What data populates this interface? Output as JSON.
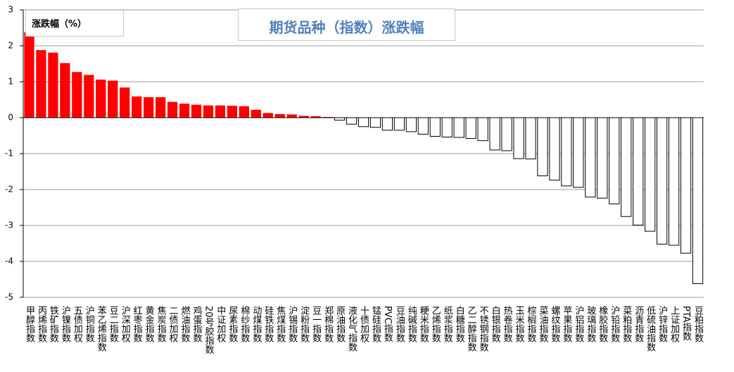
{
  "chart_data": {
    "type": "bar",
    "title": "期货品种（指数）涨跌幅",
    "legend_label": "涨跌幅（%）",
    "categories": [
      "甲醇指数",
      "丙烯指数",
      "铁矿指数",
      "沪镍指数",
      "五债加权",
      "沪铜指数",
      "苯乙烯指数",
      "豆二指数",
      "沪深加权",
      "红枣指数",
      "黄金指数",
      "焦炭指数",
      "二债加权",
      "燃油指数",
      "鸡蛋指数",
      "20号胶指数",
      "中证加权",
      "尿素指数",
      "棉纱指数",
      "动煤指数",
      "硅铁指数",
      "焦煤指数",
      "沪锡指数",
      "淀粉指数",
      "豆一指数",
      "郑棉指数",
      "原油指数",
      "液化气指数",
      "十债加权",
      "锰硅指数",
      "PVC指数",
      "豆油指数",
      "纯碱指数",
      "粳米指数",
      "乙烯指数",
      "纸浆指数",
      "白糖指数",
      "乙二醇指数",
      "不锈钢指数",
      "白银指数",
      "热卷指数",
      "玉米指数",
      "棕榈指数",
      "菜油指数",
      "螺纹指数",
      "苹果指数",
      "沪铝指数",
      "玻璃指数",
      "橡胶指数",
      "沪铅指数",
      "菜粕指数",
      "沥青指数",
      "低硫油指数",
      "沪锌指数",
      "上证加权",
      "PTA指数",
      "豆粕指数"
    ],
    "values": [
      2.38,
      1.88,
      1.81,
      1.52,
      1.27,
      1.19,
      1.06,
      1.03,
      0.84,
      0.59,
      0.57,
      0.57,
      0.44,
      0.39,
      0.36,
      0.34,
      0.34,
      0.33,
      0.32,
      0.22,
      0.13,
      0.1,
      0.09,
      0.05,
      0.04,
      0.02,
      -0.07,
      -0.18,
      -0.25,
      -0.27,
      -0.35,
      -0.35,
      -0.39,
      -0.46,
      -0.52,
      -0.54,
      -0.55,
      -0.58,
      -0.64,
      -0.9,
      -0.92,
      -1.14,
      -1.15,
      -1.62,
      -1.74,
      -1.9,
      -1.94,
      -2.21,
      -2.24,
      -2.4,
      -2.75,
      -2.99,
      -3.16,
      -3.52,
      -3.55,
      -3.77,
      -4.62
    ],
    "positive_color": "#ff0000",
    "negative_color": "#ffffff",
    "ylim": [
      -5,
      3
    ],
    "yticks": [
      -5,
      -4,
      -3,
      -2,
      -1,
      0,
      1,
      2,
      3
    ],
    "grid": true
  }
}
